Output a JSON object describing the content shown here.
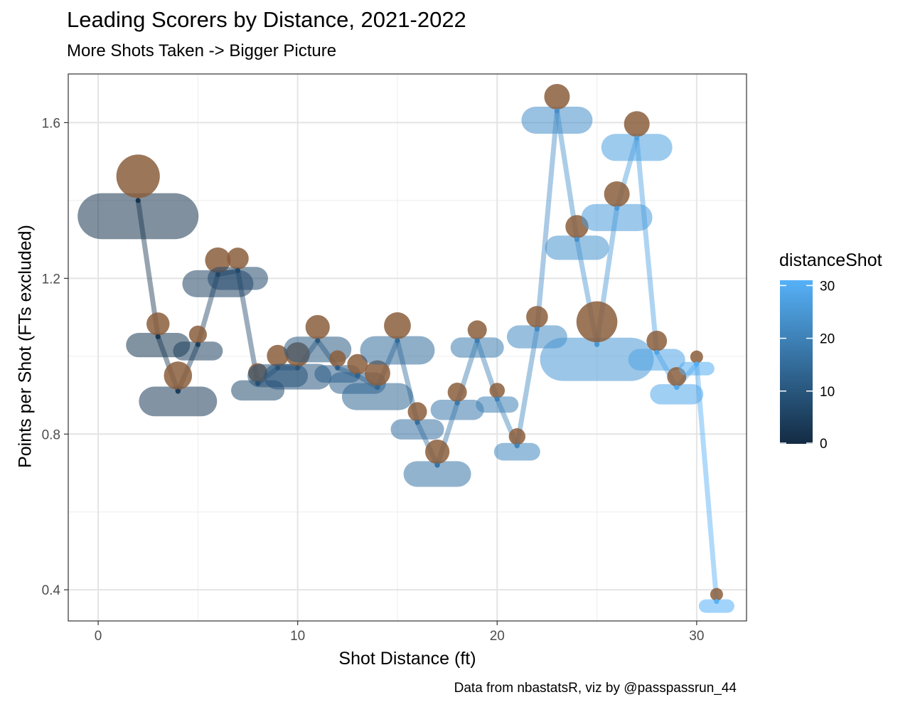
{
  "title": "Leading Scorers by Distance, 2021-2022",
  "subtitle": "More Shots Taken -> Bigger Picture",
  "caption": "Data from nbastatsR, viz by @passpassrun_44",
  "chart_data": {
    "type": "line",
    "xlabel": "Shot Distance (ft)",
    "ylabel": "Points per Shot (FTs excluded)",
    "xlim": [
      -1.5,
      32.5
    ],
    "ylim": [
      0.32,
      1.725
    ],
    "x_ticks": [
      0,
      10,
      20,
      30
    ],
    "y_ticks": [
      0.4,
      0.8,
      1.2,
      1.6
    ],
    "x_tick_labels": [
      "0",
      "10",
      "20",
      "30"
    ],
    "y_tick_labels": [
      "0.4",
      "0.8",
      "1.2",
      "1.6"
    ],
    "grid": true,
    "points": [
      {
        "x": 2,
        "y": 1.4,
        "size": 3.4
      },
      {
        "x": 3,
        "y": 1.05,
        "size": 1.8
      },
      {
        "x": 4,
        "y": 0.91,
        "size": 2.2
      },
      {
        "x": 5,
        "y": 1.03,
        "size": 1.4
      },
      {
        "x": 6,
        "y": 1.21,
        "size": 2.0
      },
      {
        "x": 7,
        "y": 1.22,
        "size": 1.7
      },
      {
        "x": 8,
        "y": 0.93,
        "size": 1.5
      },
      {
        "x": 9,
        "y": 0.97,
        "size": 1.7
      },
      {
        "x": 10,
        "y": 0.97,
        "size": 1.9
      },
      {
        "x": 11,
        "y": 1.04,
        "size": 1.9
      },
      {
        "x": 12,
        "y": 0.97,
        "size": 1.3
      },
      {
        "x": 13,
        "y": 0.95,
        "size": 1.6
      },
      {
        "x": 14,
        "y": 0.92,
        "size": 2.0
      },
      {
        "x": 15,
        "y": 1.04,
        "size": 2.1
      },
      {
        "x": 16,
        "y": 0.83,
        "size": 1.5
      },
      {
        "x": 17,
        "y": 0.72,
        "size": 1.9
      },
      {
        "x": 18,
        "y": 0.88,
        "size": 1.5
      },
      {
        "x": 19,
        "y": 1.04,
        "size": 1.5
      },
      {
        "x": 20,
        "y": 0.89,
        "size": 1.2
      },
      {
        "x": 21,
        "y": 0.77,
        "size": 1.3
      },
      {
        "x": 22,
        "y": 1.07,
        "size": 1.7
      },
      {
        "x": 23,
        "y": 1.63,
        "size": 2.0
      },
      {
        "x": 24,
        "y": 1.3,
        "size": 1.8
      },
      {
        "x": 25,
        "y": 1.03,
        "size": 3.2
      },
      {
        "x": 26,
        "y": 1.38,
        "size": 2.0
      },
      {
        "x": 27,
        "y": 1.56,
        "size": 2.0
      },
      {
        "x": 28,
        "y": 1.01,
        "size": 1.6
      },
      {
        "x": 29,
        "y": 0.92,
        "size": 1.5
      },
      {
        "x": 30,
        "y": 0.98,
        "size": 1.0
      },
      {
        "x": 31,
        "y": 0.37,
        "size": 1.0
      }
    ],
    "legend": {
      "title": "distanceShot",
      "placement": "right",
      "ticks": [
        0,
        10,
        20,
        30
      ],
      "tick_labels": [
        "0",
        "10",
        "20",
        "30"
      ],
      "range": [
        0,
        31
      ],
      "color_low": "#132b43",
      "color_high": "#56b1f7"
    }
  }
}
